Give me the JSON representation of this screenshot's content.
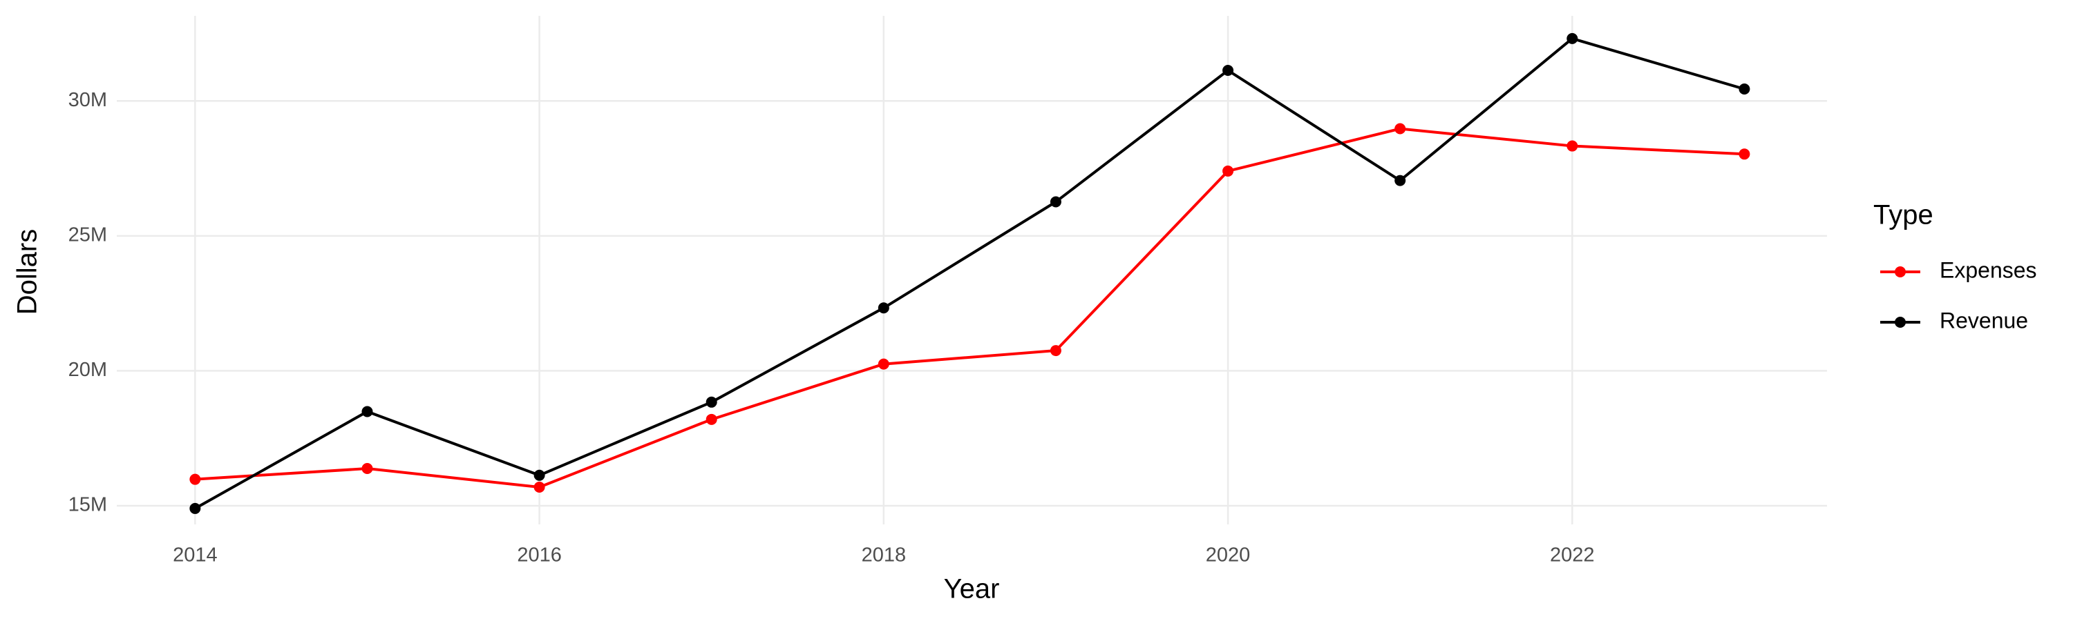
{
  "chart_data": {
    "type": "line",
    "x_label": "Year",
    "y_label": "Dollars",
    "legend_title": "Type",
    "x": [
      2014,
      2015,
      2016,
      2017,
      2018,
      2019,
      2020,
      2021,
      2022,
      2023
    ],
    "series": [
      {
        "name": "Expenses",
        "color": "#ff0000",
        "values": [
          15980000,
          16380000,
          15690000,
          18200000,
          20250000,
          20750000,
          27400000,
          28970000,
          28330000,
          28030000
        ]
      },
      {
        "name": "Revenue",
        "color": "#000000",
        "values": [
          14900000,
          18490000,
          16130000,
          18840000,
          22330000,
          26260000,
          31130000,
          27050000,
          32310000,
          30440000
        ]
      }
    ],
    "xlim": [
      2013.545,
      2023.48
    ],
    "xticks": [
      2014,
      2016,
      2018,
      2020,
      2022
    ],
    "ylim": [
      14310000,
      33150000
    ],
    "yticks": [
      {
        "value": 15000000,
        "label": "15M"
      },
      {
        "value": 20000000,
        "label": "20M"
      },
      {
        "value": 25000000,
        "label": "25M"
      },
      {
        "value": 30000000,
        "label": "30M"
      }
    ],
    "grid": true,
    "legend": "right"
  }
}
